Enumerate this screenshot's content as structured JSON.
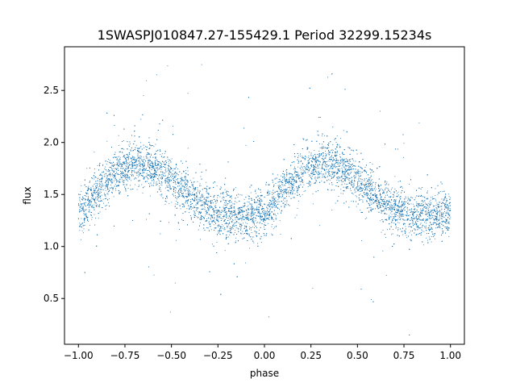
{
  "chart_data": {
    "type": "scatter",
    "title": "1SWASPJ010847.27-155429.1 Period 32299.15234s",
    "xlabel": "phase",
    "ylabel": "flux",
    "xlim": [
      -1.075,
      1.075
    ],
    "ylim": [
      0.06,
      2.92
    ],
    "x_ticks": [
      -1.0,
      -0.75,
      -0.5,
      -0.25,
      0.0,
      0.25,
      0.5,
      0.75,
      1.0
    ],
    "x_tick_labels": [
      "−1.00",
      "−0.75",
      "−0.50",
      "−0.25",
      "0.00",
      "0.25",
      "0.50",
      "0.75",
      "1.00"
    ],
    "y_ticks": [
      0.5,
      1.0,
      1.5,
      2.0,
      2.5
    ],
    "y_tick_labels": [
      "0.5",
      "1.0",
      "1.5",
      "2.0",
      "2.5"
    ],
    "grid": false,
    "legend": "none",
    "marker_color": "#1f77b4",
    "series": [
      {
        "x": [
          -1.0,
          -0.95,
          -0.9,
          -0.85,
          -0.8,
          -0.75,
          -0.7,
          -0.65,
          -0.6,
          -0.55,
          -0.5,
          -0.45,
          -0.4,
          -0.35,
          -0.3,
          -0.25,
          -0.2,
          -0.15,
          -0.1,
          -0.05,
          0.0,
          0.05,
          0.1,
          0.15,
          0.2,
          0.25,
          0.3,
          0.35,
          0.4,
          0.45,
          0.5,
          0.55,
          0.6,
          0.65,
          0.7,
          0.75,
          0.8,
          0.85,
          0.9,
          0.95,
          1.0
        ],
        "y": [
          1.33,
          1.4,
          1.52,
          1.63,
          1.72,
          1.77,
          1.8,
          1.8,
          1.77,
          1.71,
          1.64,
          1.56,
          1.49,
          1.42,
          1.37,
          1.33,
          1.3,
          1.29,
          1.29,
          1.3,
          1.33,
          1.4,
          1.52,
          1.63,
          1.72,
          1.77,
          1.8,
          1.8,
          1.77,
          1.71,
          1.64,
          1.56,
          1.49,
          1.42,
          1.37,
          1.33,
          1.3,
          1.29,
          1.29,
          1.3,
          1.33
        ]
      }
    ]
  }
}
